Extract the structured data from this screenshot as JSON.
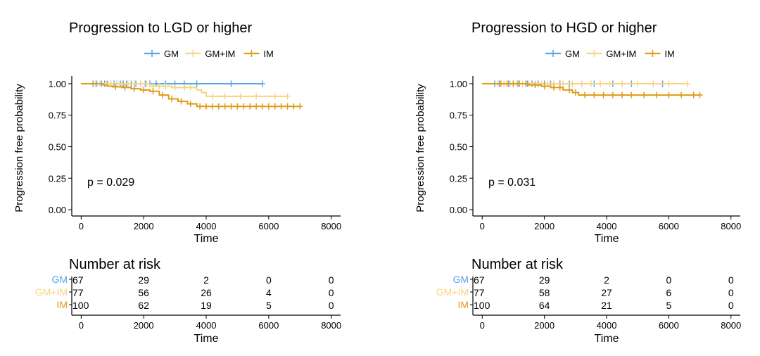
{
  "colors": {
    "GM": "#5aa5e6",
    "GM+IM": "#f7d483",
    "IM": "#e09b16"
  },
  "chart_data": [
    {
      "type": "line",
      "subtype": "kaplan-meier",
      "title": "Progression to LGD or higher",
      "xlabel": "Time",
      "ylabel": "Progression free probability",
      "xlim": [
        -300,
        8300
      ],
      "ylim": [
        -0.05,
        1.05
      ],
      "xticks": [
        0,
        2000,
        4000,
        6000,
        8000
      ],
      "xtick_labels": [
        "0",
        "2000",
        "4000",
        "6000",
        "8000"
      ],
      "yticks": [
        0,
        0.25,
        0.5,
        0.75,
        1.0
      ],
      "ytick_labels": [
        "0.00",
        "0.25",
        "0.50",
        "0.75",
        "1.00"
      ],
      "legend": [
        "GM",
        "GM+IM",
        "IM"
      ],
      "legend_position": "top",
      "pvalue_text": "p = 0.029",
      "series": [
        {
          "name": "GM",
          "x": [
            0,
            5800
          ],
          "y": [
            1.0,
            1.0
          ],
          "censor_x": [
            380,
            500,
            650,
            750,
            850,
            950,
            1050,
            1150,
            1250,
            1350,
            1450,
            1600,
            1750,
            1900,
            2050,
            2200,
            2400,
            2700,
            3000,
            3300,
            3700,
            4800,
            5800
          ]
        },
        {
          "name": "GM+IM",
          "x": [
            0,
            2200,
            2900,
            3700,
            3850,
            4000,
            6600
          ],
          "y": [
            1.0,
            0.98,
            0.97,
            0.95,
            0.93,
            0.9,
            0.9
          ],
          "censor_x": [
            450,
            600,
            800,
            950,
            1150,
            1300,
            1500,
            1700,
            1900,
            2100,
            2300,
            2500,
            2700,
            3000,
            3300,
            3500,
            4200,
            4600,
            5100,
            5600,
            6200,
            6600
          ]
        },
        {
          "name": "IM",
          "x": [
            0,
            700,
            850,
            1000,
            1300,
            1600,
            1900,
            2200,
            2500,
            2800,
            3100,
            3400,
            3700,
            7000
          ],
          "y": [
            1.0,
            0.99,
            0.98,
            0.975,
            0.97,
            0.96,
            0.95,
            0.94,
            0.91,
            0.88,
            0.86,
            0.84,
            0.82,
            0.82
          ],
          "censor_x": [
            1100,
            1400,
            1700,
            2000,
            2300,
            2600,
            2900,
            3200,
            3500,
            3800,
            4000,
            4200,
            4400,
            4600,
            4800,
            5000,
            5200,
            5400,
            5600,
            5800,
            6000,
            6200,
            6400,
            6600,
            6800,
            7000
          ]
        }
      ],
      "risk_table": {
        "title": "Number at risk",
        "xlabel": "Time",
        "times": [
          0,
          2000,
          4000,
          6000,
          8000
        ],
        "rows": [
          {
            "group": "GM",
            "counts": [
              "67",
              "29",
              "2",
              "0",
              "0"
            ]
          },
          {
            "group": "GM+IM",
            "counts": [
              "77",
              "56",
              "26",
              "4",
              "0"
            ]
          },
          {
            "group": "IM",
            "counts": [
              "100",
              "62",
              "19",
              "5",
              "0"
            ]
          }
        ]
      }
    },
    {
      "type": "line",
      "subtype": "kaplan-meier",
      "title": "Progression to HGD or higher",
      "xlabel": "Time",
      "ylabel": "Progression free probability",
      "xlim": [
        -300,
        8300
      ],
      "ylim": [
        -0.05,
        1.05
      ],
      "xticks": [
        0,
        2000,
        4000,
        6000,
        8000
      ],
      "xtick_labels": [
        "0",
        "2000",
        "4000",
        "6000",
        "8000"
      ],
      "yticks": [
        0,
        0.25,
        0.5,
        0.75,
        1.0
      ],
      "ytick_labels": [
        "0.00",
        "0.25",
        "0.50",
        "0.75",
        "1.00"
      ],
      "legend": [
        "GM",
        "GM+IM",
        "IM"
      ],
      "legend_position": "top",
      "pvalue_text": "p = 0.031",
      "series": [
        {
          "name": "GM",
          "x": [
            0,
            5800
          ],
          "y": [
            1.0,
            1.0
          ],
          "censor_x": [
            400,
            550,
            700,
            850,
            1000,
            1150,
            1300,
            1450,
            1600,
            1800,
            2000,
            2200,
            2500,
            2800,
            3200,
            3600,
            4200,
            4800,
            5800
          ]
        },
        {
          "name": "GM+IM",
          "x": [
            0,
            6600
          ],
          "y": [
            1.0,
            1.0
          ],
          "censor_x": [
            500,
            700,
            900,
            1100,
            1300,
            1500,
            1700,
            1900,
            2100,
            2300,
            2600,
            2900,
            3200,
            3500,
            3800,
            4100,
            4500,
            5000,
            5500,
            6000,
            6600
          ]
        },
        {
          "name": "IM",
          "x": [
            0,
            1500,
            1900,
            2200,
            2600,
            2900,
            3100,
            7000
          ],
          "y": [
            1.0,
            0.99,
            0.98,
            0.97,
            0.95,
            0.93,
            0.91,
            0.91
          ],
          "censor_x": [
            600,
            800,
            1000,
            1200,
            1400,
            1700,
            2000,
            2300,
            2500,
            2800,
            3000,
            3300,
            3600,
            3900,
            4200,
            4500,
            4800,
            5200,
            5600,
            6000,
            6400,
            6800,
            7000
          ]
        }
      ],
      "risk_table": {
        "title": "Number at risk",
        "xlabel": "Time",
        "times": [
          0,
          2000,
          4000,
          6000,
          8000
        ],
        "rows": [
          {
            "group": "GM",
            "counts": [
              "67",
              "29",
              "2",
              "0",
              "0"
            ]
          },
          {
            "group": "GM+IM",
            "counts": [
              "77",
              "58",
              "27",
              "6",
              "0"
            ]
          },
          {
            "group": "IM",
            "counts": [
              "100",
              "64",
              "21",
              "5",
              "0"
            ]
          }
        ]
      }
    }
  ]
}
